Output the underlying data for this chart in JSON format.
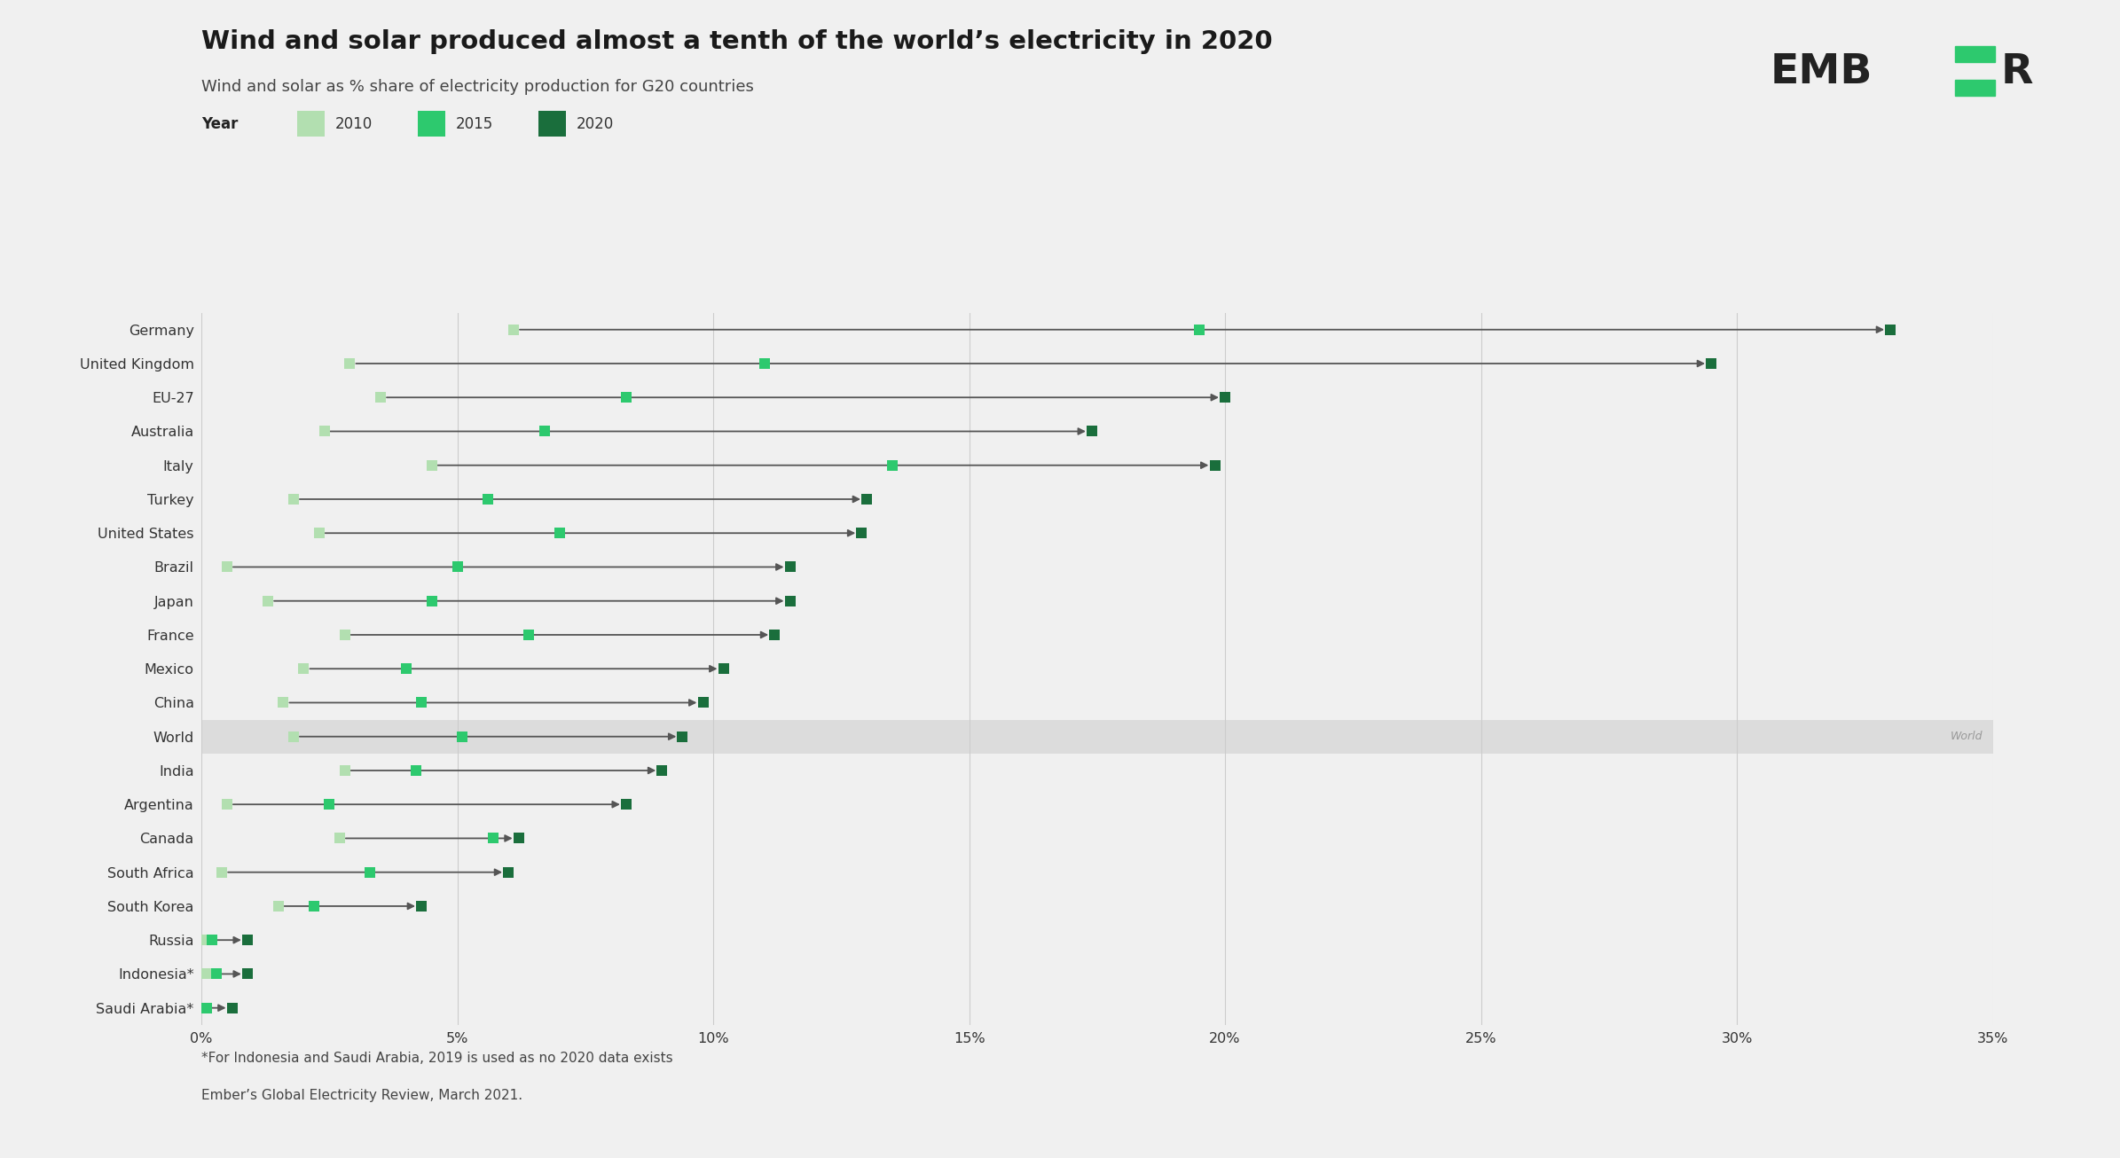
{
  "title": "Wind and solar produced almost a tenth of the world’s electricity in 2020",
  "subtitle": "Wind and solar as % share of electricity production for G20 countries",
  "footer_line1": "*For Indonesia and Saudi Arabia, 2019 is used as no 2020 data exists",
  "footer_line2": "Ember’s Global Electricity Review, March 2021.",
  "year_label": "Year",
  "legend_labels": [
    "2010",
    "2015",
    "2020"
  ],
  "background_color": "#f0f0f0",
  "plot_background": "#f0f0f0",
  "countries": [
    "Germany",
    "United Kingdom",
    "EU-27",
    "Australia",
    "Italy",
    "Turkey",
    "United States",
    "Brazil",
    "Japan",
    "France",
    "Mexico",
    "China",
    "World",
    "India",
    "Argentina",
    "Canada",
    "South Africa",
    "South Korea",
    "Russia",
    "Indonesia*",
    "Saudi Arabia*"
  ],
  "data_2010": [
    6.1,
    2.9,
    3.5,
    2.4,
    4.5,
    1.8,
    2.3,
    0.5,
    1.3,
    2.8,
    2.0,
    1.6,
    1.8,
    2.8,
    0.5,
    2.7,
    0.4,
    1.5,
    0.1,
    0.1,
    0.0
  ],
  "data_2015": [
    19.5,
    11.0,
    8.3,
    6.7,
    13.5,
    5.6,
    7.0,
    5.0,
    4.5,
    6.4,
    4.0,
    4.3,
    5.1,
    4.2,
    2.5,
    5.7,
    3.3,
    2.2,
    0.2,
    0.3,
    0.1
  ],
  "data_2020": [
    33.0,
    29.5,
    20.0,
    17.4,
    19.8,
    13.0,
    12.9,
    11.5,
    11.5,
    11.2,
    10.2,
    9.8,
    9.4,
    9.0,
    8.3,
    6.2,
    6.0,
    4.3,
    0.9,
    0.9,
    0.6
  ],
  "color_2010": "#b2dfb0",
  "color_2015": "#2dc96e",
  "color_2020": "#1a6e3c",
  "world_row_idx": 12,
  "world_highlight_color": "#dcdcdc",
  "xlim": [
    0,
    35
  ],
  "xticks": [
    0,
    5,
    10,
    15,
    20,
    25,
    30,
    35
  ],
  "xtick_labels": [
    "0%",
    "5%",
    "10%",
    "15%",
    "20%",
    "25%",
    "30%",
    "35%"
  ],
  "marker_size": 9,
  "arrow_color": "#555555",
  "ember_text_color": "#222222",
  "ember_green": "#2dc96e"
}
